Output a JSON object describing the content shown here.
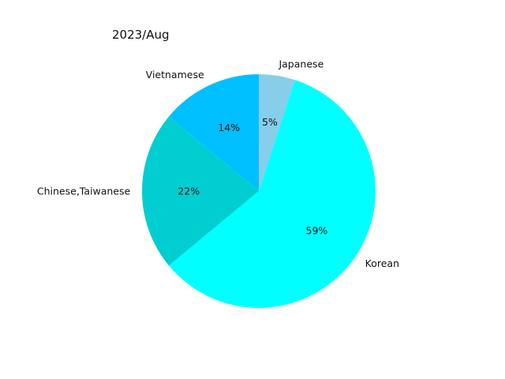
{
  "chart_data": {
    "type": "pie",
    "title": "2023/Aug",
    "labels": [
      "Japanese",
      "Korean",
      "Chinese,Taiwanese",
      "Vietnamese"
    ],
    "values": [
      5,
      59,
      22,
      14
    ],
    "value_labels": [
      "5%",
      "59%",
      "22%",
      "14%"
    ],
    "colors": [
      "#87ceeb",
      "#00ffff",
      "#00ced1",
      "#00bfff"
    ],
    "start_angle": "top (12 o'clock), clockwise",
    "legend": "none"
  }
}
